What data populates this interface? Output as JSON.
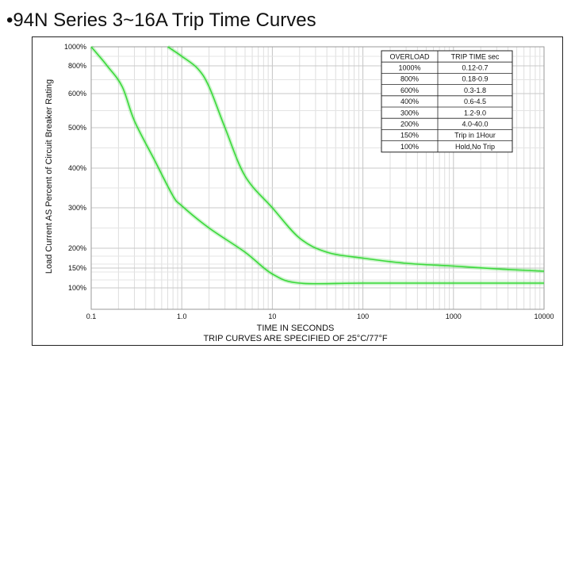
{
  "page": {
    "title": "•94N Series 3~16A Trip Time Curves"
  },
  "chart_data": {
    "type": "line",
    "title": "•94N Series 3~16A Trip Time Curves",
    "xlabel": "TIME IN SECONDS",
    "xlabel_note": "TRIP CURVES ARE SPECIFIED OF 25°C/77°F",
    "ylabel": "Load Current AS Percent of Circuit Breaker Rating",
    "x_scale": "log",
    "xlim": [
      0.1,
      10000
    ],
    "ylim": [
      100,
      1000
    ],
    "grid": true,
    "x_ticks": [
      {
        "value": 0.1,
        "label": "0.1"
      },
      {
        "value": 1,
        "label": "1.0"
      },
      {
        "value": 10,
        "label": "10"
      },
      {
        "value": 100,
        "label": "100"
      },
      {
        "value": 1000,
        "label": "1000"
      },
      {
        "value": 10000,
        "label": "10000"
      }
    ],
    "y_ticks": [
      {
        "value": 1000,
        "label": "1000%"
      },
      {
        "value": 800,
        "label": "800%"
      },
      {
        "value": 600,
        "label": "600%"
      },
      {
        "value": 500,
        "label": "500%"
      },
      {
        "value": 400,
        "label": "400%"
      },
      {
        "value": 300,
        "label": "300%"
      },
      {
        "value": 200,
        "label": "200%"
      },
      {
        "value": 150,
        "label": "150%"
      },
      {
        "value": 100,
        "label": "100%"
      }
    ],
    "series_color": "#3ad93a",
    "series": [
      {
        "points": [
          {
            "x": 0.1,
            "y": 1000
          },
          {
            "x": 0.15,
            "y": 800
          },
          {
            "x": 0.22,
            "y": 650
          },
          {
            "x": 0.3,
            "y": 520
          },
          {
            "x": 0.5,
            "y": 420
          },
          {
            "x": 0.8,
            "y": 330
          },
          {
            "x": 1.0,
            "y": 305
          },
          {
            "x": 2.0,
            "y": 250
          },
          {
            "x": 5.0,
            "y": 190
          },
          {
            "x": 10,
            "y": 135
          },
          {
            "x": 20,
            "y": 112
          },
          {
            "x": 100,
            "y": 112
          },
          {
            "x": 1000,
            "y": 112
          },
          {
            "x": 10000,
            "y": 112
          }
        ]
      },
      {
        "points": [
          {
            "x": 0.7,
            "y": 1000
          },
          {
            "x": 1.0,
            "y": 900
          },
          {
            "x": 1.5,
            "y": 780
          },
          {
            "x": 2.0,
            "y": 650
          },
          {
            "x": 3.0,
            "y": 500
          },
          {
            "x": 5.0,
            "y": 380
          },
          {
            "x": 10,
            "y": 300
          },
          {
            "x": 20,
            "y": 225
          },
          {
            "x": 40,
            "y": 190
          },
          {
            "x": 100,
            "y": 175
          },
          {
            "x": 300,
            "y": 162
          },
          {
            "x": 1000,
            "y": 155
          },
          {
            "x": 3000,
            "y": 148
          },
          {
            "x": 10000,
            "y": 142
          }
        ]
      }
    ],
    "table": {
      "headers": [
        "OVERLOAD",
        "TRIP TIME sec"
      ],
      "rows": [
        [
          "1000%",
          "0.12-0.7"
        ],
        [
          "800%",
          "0.18-0.9"
        ],
        [
          "600%",
          "0.3-1.8"
        ],
        [
          "400%",
          "0.6-4.5"
        ],
        [
          "300%",
          "1.2-9.0"
        ],
        [
          "200%",
          "4.0-40.0"
        ],
        [
          "150%",
          "Trip in 1Hour"
        ],
        [
          "100%",
          "Hold,No Trip"
        ]
      ]
    }
  }
}
